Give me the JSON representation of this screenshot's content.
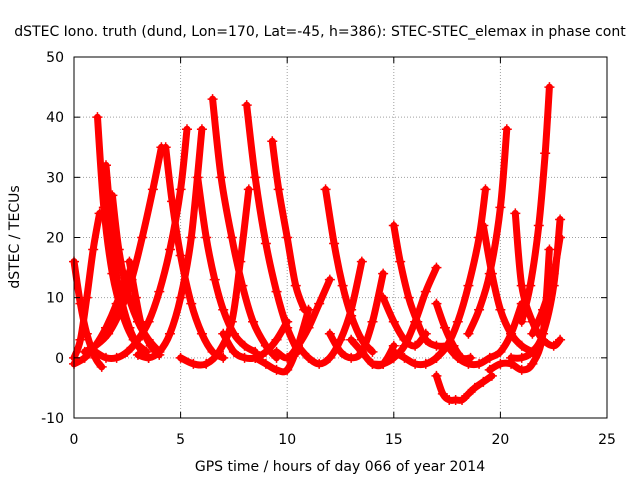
{
  "chart_data": {
    "type": "scatter",
    "title": "dSTEC Iono. truth (dund, Lon=170, Lat=-45, h=386): STEC-STEC_elemax in phase cont",
    "xlabel": "GPS time / hours of day 066 of year 2014",
    "ylabel": "dSTEC  / TECUs",
    "xlim": [
      0,
      25
    ],
    "ylim": [
      -10,
      50
    ],
    "xticks": [
      0,
      5,
      10,
      15,
      20,
      25
    ],
    "yticks": [
      -10,
      0,
      10,
      20,
      30,
      40,
      50
    ],
    "grid": true,
    "marker": "+",
    "color": "#ff0000",
    "series": [
      {
        "x": [
          0.0,
          0.3,
          0.6,
          1.0,
          1.3
        ],
        "y": [
          16,
          9,
          4,
          0,
          -1.5
        ]
      },
      {
        "x": [
          0.0,
          0.3,
          0.6,
          0.9,
          1.2
        ],
        "y": [
          0,
          3,
          10,
          18,
          24
        ]
      },
      {
        "x": [
          1.1,
          1.4,
          1.8,
          2.3,
          2.8,
          3.4
        ],
        "y": [
          40,
          25,
          14,
          7,
          3,
          1
        ]
      },
      {
        "x": [
          0.0,
          0.5,
          1.0,
          1.5,
          2.0,
          2.5
        ],
        "y": [
          -1,
          0,
          2,
          5,
          9,
          14
        ]
      },
      {
        "x": [
          1.5,
          1.7,
          1.9,
          2.2,
          2.6,
          3.0,
          3.5
        ],
        "y": [
          32,
          24,
          16,
          10,
          5,
          2,
          0
        ]
      },
      {
        "x": [
          1.8,
          2.1,
          2.5,
          3.0,
          3.5,
          4.0
        ],
        "y": [
          27,
          18,
          11,
          6,
          3,
          1
        ]
      },
      {
        "x": [
          2.6,
          2.9,
          3.2,
          3.6,
          4.0
        ],
        "y": [
          16,
          10,
          5,
          2,
          0.5
        ]
      },
      {
        "x": [
          0.5,
          1.0,
          1.6,
          2.2,
          2.7,
          3.2,
          3.7,
          4.1
        ],
        "y": [
          1,
          2,
          4,
          8,
          13,
          20,
          28,
          35
        ]
      },
      {
        "x": [
          1.0,
          1.5,
          2.0,
          2.5,
          3.0,
          3.5,
          4.0,
          4.5,
          5.0,
          5.3
        ],
        "y": [
          1,
          0,
          0,
          1,
          3,
          6,
          11,
          18,
          28,
          38
        ]
      },
      {
        "x": [
          4.3,
          4.6,
          5.0,
          5.5,
          6.0,
          6.5,
          7.0
        ],
        "y": [
          35,
          26,
          17,
          9,
          4,
          1,
          0
        ]
      },
      {
        "x": [
          3.0,
          3.5,
          4.0,
          4.5,
          5.0,
          5.5,
          6.0
        ],
        "y": [
          0.5,
          0,
          1,
          4,
          10,
          20,
          38
        ]
      },
      {
        "x": [
          5.8,
          6.2,
          6.6,
          7.0,
          7.5,
          8.0,
          8.5
        ],
        "y": [
          30,
          20,
          13,
          8,
          4,
          2,
          1
        ]
      },
      {
        "x": [
          6.5,
          6.9,
          7.4,
          7.9,
          8.4,
          9.0,
          9.5
        ],
        "y": [
          43,
          30,
          20,
          12,
          6,
          2,
          0
        ]
      },
      {
        "x": [
          8.1,
          8.5,
          9.0,
          9.5,
          10.0,
          10.5
        ],
        "y": [
          42,
          30,
          19,
          11,
          5,
          1
        ]
      },
      {
        "x": [
          5.0,
          5.6,
          6.2,
          6.8,
          7.4,
          7.8,
          8.2
        ],
        "y": [
          0,
          -1,
          -1,
          1,
          6,
          16,
          28
        ]
      },
      {
        "x": [
          7.0,
          7.5,
          8.0,
          8.5,
          9.0,
          9.5,
          10.0
        ],
        "y": [
          4,
          1,
          0,
          0,
          1,
          3,
          6
        ]
      },
      {
        "x": [
          9.3,
          9.6,
          10.0,
          10.4,
          10.8
        ],
        "y": [
          36,
          28,
          20,
          12,
          8
        ]
      },
      {
        "x": [
          8.5,
          9.0,
          9.5,
          10.0,
          10.5,
          11.0
        ],
        "y": [
          0,
          -1,
          -2,
          -2,
          2,
          8
        ]
      },
      {
        "x": [
          9.5,
          10.0,
          10.5,
          11.0,
          11.5,
          12.0
        ],
        "y": [
          1,
          0,
          2,
          5,
          9,
          13
        ]
      },
      {
        "x": [
          11.8,
          12.2,
          12.6,
          13.0,
          13.5,
          14.0
        ],
        "y": [
          28,
          19,
          12,
          7,
          3,
          1
        ]
      },
      {
        "x": [
          10.5,
          11.0,
          11.5,
          12.0,
          12.5,
          13.0,
          13.5
        ],
        "y": [
          2,
          0,
          -1,
          0,
          3,
          8,
          16
        ]
      },
      {
        "x": [
          12.0,
          12.5,
          13.0,
          13.5,
          14.0,
          14.5
        ],
        "y": [
          4,
          1,
          0,
          1,
          6,
          14
        ]
      },
      {
        "x": [
          13.0,
          13.5,
          14.0,
          14.5,
          15.0
        ],
        "y": [
          3,
          1,
          -1,
          -1,
          2
        ]
      },
      {
        "x": [
          14.5,
          15.0,
          15.5,
          16.0,
          16.5
        ],
        "y": [
          10,
          6,
          3,
          2,
          4
        ]
      },
      {
        "x": [
          15.0,
          15.3,
          15.7,
          16.1,
          16.5,
          17.0,
          17.5
        ],
        "y": [
          22,
          16,
          10,
          6,
          3,
          2,
          2
        ]
      },
      {
        "x": [
          14.0,
          14.5,
          15.0,
          15.5,
          16.0,
          16.5,
          17.0
        ],
        "y": [
          -1,
          -1,
          0,
          2,
          6,
          11,
          15
        ]
      },
      {
        "x": [
          15.0,
          15.5,
          16.0,
          16.5,
          17.0,
          17.5
        ],
        "y": [
          1,
          0,
          -1,
          -1,
          0,
          2
        ]
      },
      {
        "x": [
          17.0,
          17.4,
          17.8,
          18.2,
          18.6
        ],
        "y": [
          9,
          5,
          2,
          0,
          0
        ]
      },
      {
        "x": [
          17.0,
          17.3,
          17.6,
          17.9,
          18.2,
          18.5,
          18.8,
          19.2,
          19.6
        ],
        "y": [
          -3,
          -6,
          -7,
          -7,
          -7,
          -6,
          -5,
          -4,
          -3
        ]
      },
      {
        "x": [
          17.5,
          18.0,
          18.5,
          19.0,
          19.5,
          20.0,
          20.5,
          21.0
        ],
        "y": [
          2,
          0,
          -1,
          -1,
          0,
          1,
          4,
          9
        ]
      },
      {
        "x": [
          17.0,
          17.5,
          18.0,
          18.5,
          19.0,
          19.3
        ],
        "y": [
          0,
          2,
          6,
          12,
          20,
          28
        ]
      },
      {
        "x": [
          18.5,
          19.0,
          19.5,
          20.0,
          20.3
        ],
        "y": [
          4,
          8,
          14,
          25,
          38
        ]
      },
      {
        "x": [
          19.2,
          19.6,
          20.0,
          20.5,
          21.0,
          21.5
        ],
        "y": [
          22,
          14,
          8,
          4,
          2,
          1
        ]
      },
      {
        "x": [
          19.5,
          20.0,
          20.5,
          21.0,
          21.5,
          22.0,
          22.3
        ],
        "y": [
          -2,
          -1,
          -1,
          -2,
          -1,
          4,
          18
        ]
      },
      {
        "x": [
          20.5,
          21.0,
          21.5,
          22.0,
          22.5,
          22.8
        ],
        "y": [
          0,
          0,
          1,
          4,
          12,
          23
        ]
      },
      {
        "x": [
          20.7,
          21.0,
          21.5,
          22.0,
          22.5,
          22.8
        ],
        "y": [
          24,
          12,
          6,
          3,
          2,
          3
        ]
      },
      {
        "x": [
          21.0,
          21.4,
          21.8,
          22.1,
          22.3
        ],
        "y": [
          6,
          12,
          22,
          34,
          45
        ]
      },
      {
        "x": [
          21.5,
          22.0,
          22.5,
          22.8
        ],
        "y": [
          4,
          8,
          14,
          20
        ]
      }
    ]
  }
}
